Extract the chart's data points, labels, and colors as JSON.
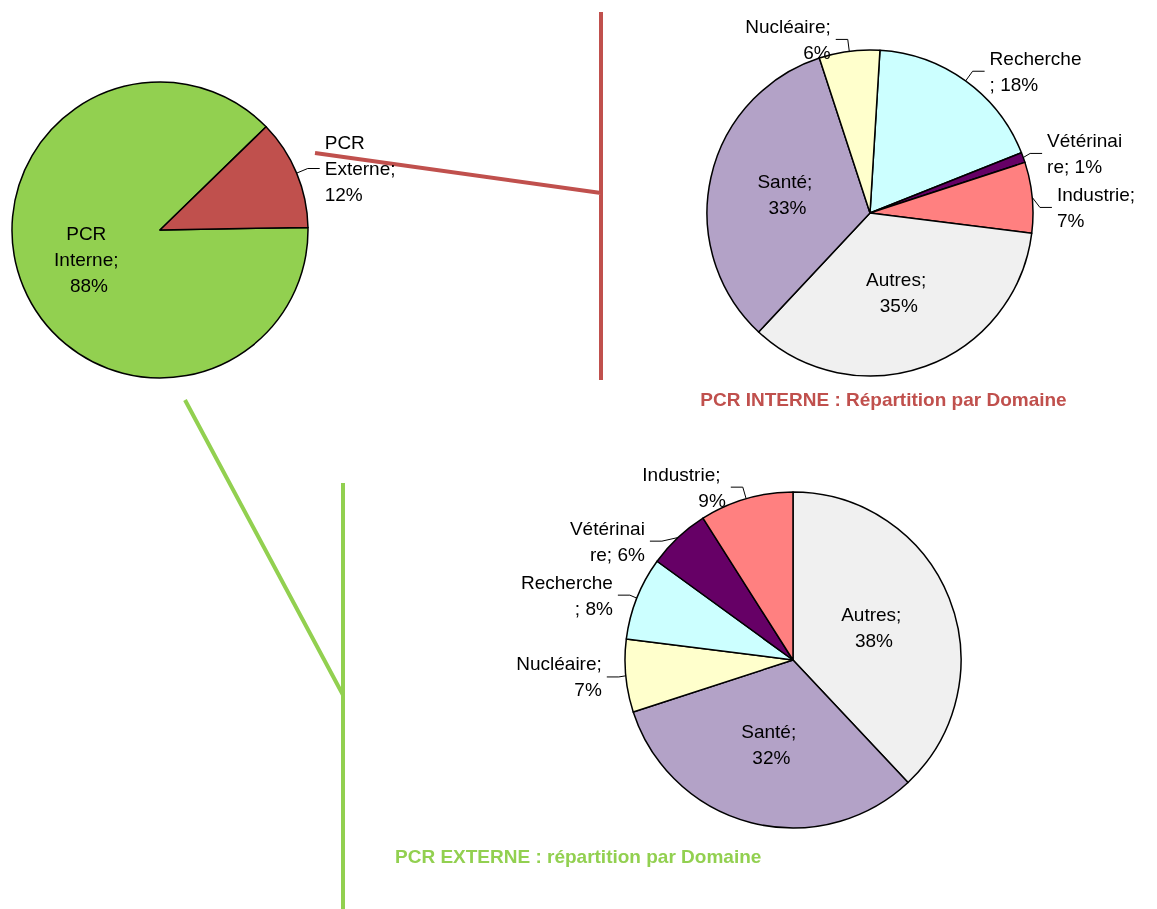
{
  "chart_data": [
    {
      "type": "pie",
      "categories": [
        "PCR Interne",
        "PCR Externe"
      ],
      "values": [
        88,
        12
      ],
      "value_labels": [
        "; 88%",
        "; 12%"
      ],
      "colors": [
        "#92d050",
        "#c0504d"
      ],
      "legend": false
    },
    {
      "type": "pie",
      "title": "PCR INTERNE : Répartition par Domaine",
      "categories": [
        "Recherche",
        "Vétérinaire",
        "Industrie",
        "Autres",
        "Santé",
        "Nucléaire"
      ],
      "values": [
        18,
        1,
        7,
        35,
        33,
        6
      ],
      "value_labels": [
        "; 18%",
        "; 1%",
        "; 7%",
        "; 35%",
        "; 33%",
        "; 6%"
      ],
      "colors": [
        "#ccffff",
        "#660066",
        "#ff8080",
        "#f0f0f0",
        "#b3a2c7",
        "#ffffcc"
      ],
      "legend": false
    },
    {
      "type": "pie",
      "title": "PCR EXTERNE : répartition par Domaine",
      "categories": [
        "Autres",
        "Santé",
        "Nucléaire",
        "Recherche",
        "Vétérinaire",
        "Industrie"
      ],
      "values": [
        38,
        32,
        7,
        8,
        6,
        9
      ],
      "value_labels": [
        "; 38%",
        "; 32%",
        "; 7%",
        "; 8%",
        "; 6%",
        "; 9%"
      ],
      "colors": [
        "#f0f0f0",
        "#b3a2c7",
        "#ffffcc",
        "#ccffff",
        "#660066",
        "#ff8080"
      ],
      "legend": false
    }
  ]
}
